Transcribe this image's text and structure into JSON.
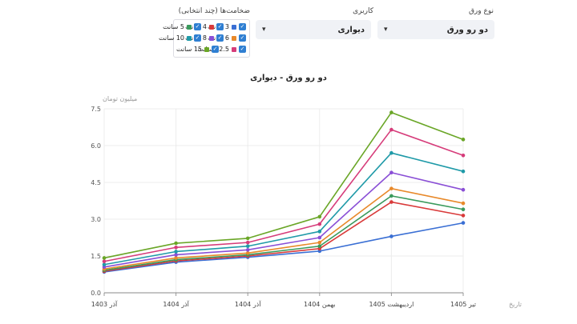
{
  "filters": {
    "sheet_type": {
      "label": "نوع ورق",
      "value": "دو رو ورق"
    },
    "application": {
      "label": "کاربری",
      "value": "دیواری"
    },
    "thickness": {
      "label": "ضخامت‌ها (چند انتخابی)",
      "options": [
        {
          "label": "3 سانت",
          "checked": true,
          "color": "#3a6fd4"
        },
        {
          "label": "4 سانت",
          "checked": true,
          "color": "#d93a3a"
        },
        {
          "label": "5 سانت",
          "checked": true,
          "color": "#3a9a5c"
        },
        {
          "label": "6 سانت",
          "checked": true,
          "color": "#e8892a"
        },
        {
          "label": "8 سانت",
          "checked": true,
          "color": "#8a4fd6"
        },
        {
          "label": "10 سانت",
          "checked": true,
          "color": "#1f9aa8"
        },
        {
          "label": "12.5 سانت",
          "checked": true,
          "color": "#d63c7a"
        },
        {
          "label": "15 سانت",
          "checked": true,
          "color": "#6aa627"
        }
      ]
    }
  },
  "chart_data": {
    "type": "line",
    "title": "دو رو ورق - دیواری",
    "xlabel": "تاریخ",
    "ylabel": "میلیون تومان",
    "categories": [
      "آذر 1403",
      "آذر 1404",
      "آذر 1404",
      "بهمن 1404",
      "اردیبهشت 1405",
      "تیر 1405"
    ],
    "ylim": [
      0,
      7.5
    ],
    "yticks": [
      "0.0",
      "1.5",
      "3.0",
      "4.5",
      "6.0",
      "7.5"
    ],
    "grid": true,
    "series": [
      {
        "name": "3 سانت",
        "color": "#3a6fd4",
        "values": [
          0.85,
          1.25,
          1.45,
          1.7,
          2.3,
          2.85
        ]
      },
      {
        "name": "4 سانت",
        "color": "#d93a3a",
        "values": [
          0.88,
          1.3,
          1.5,
          1.8,
          3.7,
          3.15
        ]
      },
      {
        "name": "5 سانت",
        "color": "#3a9a5c",
        "values": [
          0.92,
          1.35,
          1.55,
          1.9,
          3.95,
          3.4
        ]
      },
      {
        "name": "6 سانت",
        "color": "#e8892a",
        "values": [
          0.97,
          1.42,
          1.62,
          2.05,
          4.25,
          3.65
        ]
      },
      {
        "name": "8 سانت",
        "color": "#8a4fd6",
        "values": [
          1.05,
          1.55,
          1.75,
          2.25,
          4.9,
          4.2
        ]
      },
      {
        "name": "10 سانت",
        "color": "#1f9aa8",
        "values": [
          1.15,
          1.68,
          1.9,
          2.5,
          5.7,
          4.95
        ]
      },
      {
        "name": "12.5 سانت",
        "color": "#d63c7a",
        "values": [
          1.28,
          1.85,
          2.05,
          2.8,
          6.65,
          5.6
        ]
      },
      {
        "name": "15 سانت",
        "color": "#6aa627",
        "values": [
          1.42,
          2.02,
          2.22,
          3.1,
          7.35,
          6.25
        ]
      }
    ]
  }
}
